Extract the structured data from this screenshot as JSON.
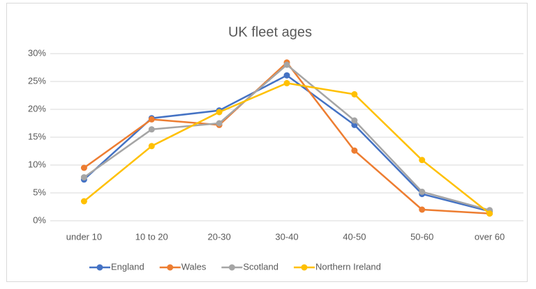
{
  "chart_data": {
    "type": "line",
    "title": "UK fleet ages",
    "categories": [
      "under 10",
      "10 to 20",
      "20-30",
      "30-40",
      "40-50",
      "50-60",
      "over 60"
    ],
    "series": [
      {
        "name": "England",
        "color": "#4472c4",
        "values": [
          7.4,
          18.4,
          19.8,
          26.1,
          17.2,
          4.8,
          1.7
        ]
      },
      {
        "name": "Wales",
        "color": "#ed7d31",
        "values": [
          9.5,
          18.2,
          17.2,
          28.4,
          12.6,
          2.0,
          1.3
        ]
      },
      {
        "name": "Scotland",
        "color": "#a5a5a5",
        "values": [
          7.8,
          16.4,
          17.5,
          28.0,
          18.0,
          5.2,
          1.9
        ]
      },
      {
        "name": "Northern Ireland",
        "color": "#ffc000",
        "values": [
          3.5,
          13.4,
          19.5,
          24.7,
          22.7,
          10.9,
          1.3
        ]
      }
    ],
    "ylim": [
      0,
      30
    ],
    "yticks": [
      {
        "value": 0,
        "label": "0%"
      },
      {
        "value": 5,
        "label": "5%"
      },
      {
        "value": 10,
        "label": "10%"
      },
      {
        "value": 15,
        "label": "15%"
      },
      {
        "value": 20,
        "label": "20%"
      },
      {
        "value": 25,
        "label": "25%"
      },
      {
        "value": 30,
        "label": "30%"
      }
    ],
    "grid": true,
    "legend": "bottom"
  }
}
